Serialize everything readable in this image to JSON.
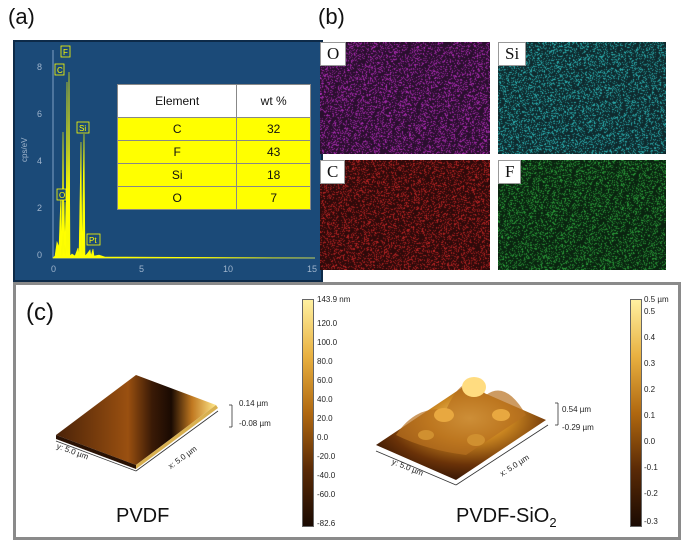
{
  "panels": {
    "a": "(a)",
    "b": "(b)",
    "c": "(c)"
  },
  "eds": {
    "ylabel": "cps/eV",
    "yticks": [
      "8",
      "6",
      "4",
      "2",
      "0"
    ],
    "xticks": [
      "0",
      "5",
      "10",
      "15"
    ],
    "peaks": [
      "F",
      "C",
      "Si",
      "O",
      "Pt"
    ],
    "table": {
      "headers": [
        "Element",
        "wt %"
      ],
      "rows": [
        {
          "element": "C",
          "wt": "32"
        },
        {
          "element": "F",
          "wt": "43"
        },
        {
          "element": "Si",
          "wt": "18"
        },
        {
          "element": "O",
          "wt": "7"
        }
      ]
    },
    "colors": {
      "background": "#1a4a78",
      "frame": "#2a5d90",
      "spectrum": "#ffff00"
    }
  },
  "maps": [
    {
      "label": "O",
      "color": "#c030c8"
    },
    {
      "label": "Si",
      "color": "#30c8c8"
    },
    {
      "label": "C",
      "color": "#d02828"
    },
    {
      "label": "F",
      "color": "#30b040"
    }
  ],
  "afm": {
    "left": {
      "sample": "PVDF",
      "zmax": "0.14 µm",
      "zmin": "-0.08 µm",
      "y_axis": "y: 5.0 µm",
      "x_axis": "x: 5.0 µm",
      "scale_ticks": [
        "143.9 nm",
        "120.0",
        "100.0",
        "80.0",
        "60.0",
        "40.0",
        "20.0",
        "0.0",
        "-20.0",
        "-40.0",
        "-60.0",
        "-82.6"
      ]
    },
    "right": {
      "sample_main": "PVDF-SiO",
      "sample_sub": "2",
      "zmax": "0.54 µm",
      "zmin": "-0.29 µm",
      "y_axis": "y: 5.0 µm",
      "x_axis": "x: 5.0 µm",
      "scale_ticks": [
        "0.5 µm",
        "0.5",
        "0.4",
        "0.3",
        "0.2",
        "0.1",
        "0.0",
        "-0.1",
        "-0.2",
        "-0.3"
      ]
    }
  }
}
